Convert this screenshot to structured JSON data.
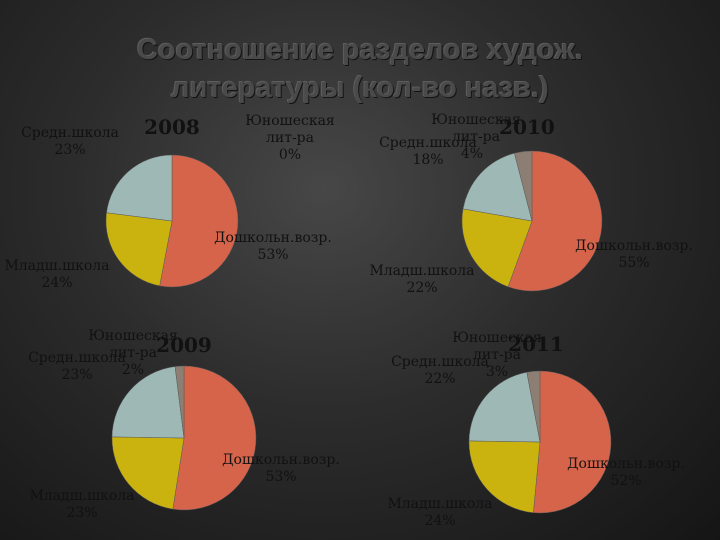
{
  "slide": {
    "title_line1": "Соотношение разделов худож.",
    "title_line2": "литературы (кол-во назв.)"
  },
  "colors": {
    "preschool": "#d5644b",
    "junior": "#cab30e",
    "middle": "#9eb8b6",
    "youth": "#8c7e73",
    "label_text": "#111111"
  },
  "chart_data": [
    {
      "type": "pie",
      "year": "2008",
      "slices": [
        {
          "name": "Дошкольн.возр.",
          "value": 53,
          "label": "53%"
        },
        {
          "name": "Младш.школа",
          "value": 24,
          "label": "24%"
        },
        {
          "name": "Средн.школа",
          "value": 23,
          "label": "23%"
        },
        {
          "name": "Юношеская лит-ра",
          "value": 0,
          "label": "0%"
        }
      ]
    },
    {
      "type": "pie",
      "year": "2010",
      "slices": [
        {
          "name": "Дошкольн.возр.",
          "value": 55,
          "label": "55%"
        },
        {
          "name": "Младш.школа",
          "value": 22,
          "label": "22%"
        },
        {
          "name": "Средн.школа",
          "value": 18,
          "label": "18%"
        },
        {
          "name": "Юношеская лит-ра",
          "value": 4,
          "label": "4%"
        }
      ]
    },
    {
      "type": "pie",
      "year": "2009",
      "slices": [
        {
          "name": "Дошкольн.возр.",
          "value": 53,
          "label": "53%"
        },
        {
          "name": "Младш.школа",
          "value": 23,
          "label": "23%"
        },
        {
          "name": "Средн.школа",
          "value": 23,
          "label": "23%"
        },
        {
          "name": "Юношеская лит-ра",
          "value": 2,
          "label": "2%"
        }
      ]
    },
    {
      "type": "pie",
      "year": "2011",
      "slices": [
        {
          "name": "Дошкольн.возр.",
          "value": 52,
          "label": "52%"
        },
        {
          "name": "Младш.школа",
          "value": 24,
          "label": "24%"
        },
        {
          "name": "Средн.школа",
          "value": 22,
          "label": "22%"
        },
        {
          "name": "Юношеская лит-ра",
          "value": 3,
          "label": "3%"
        }
      ]
    }
  ]
}
